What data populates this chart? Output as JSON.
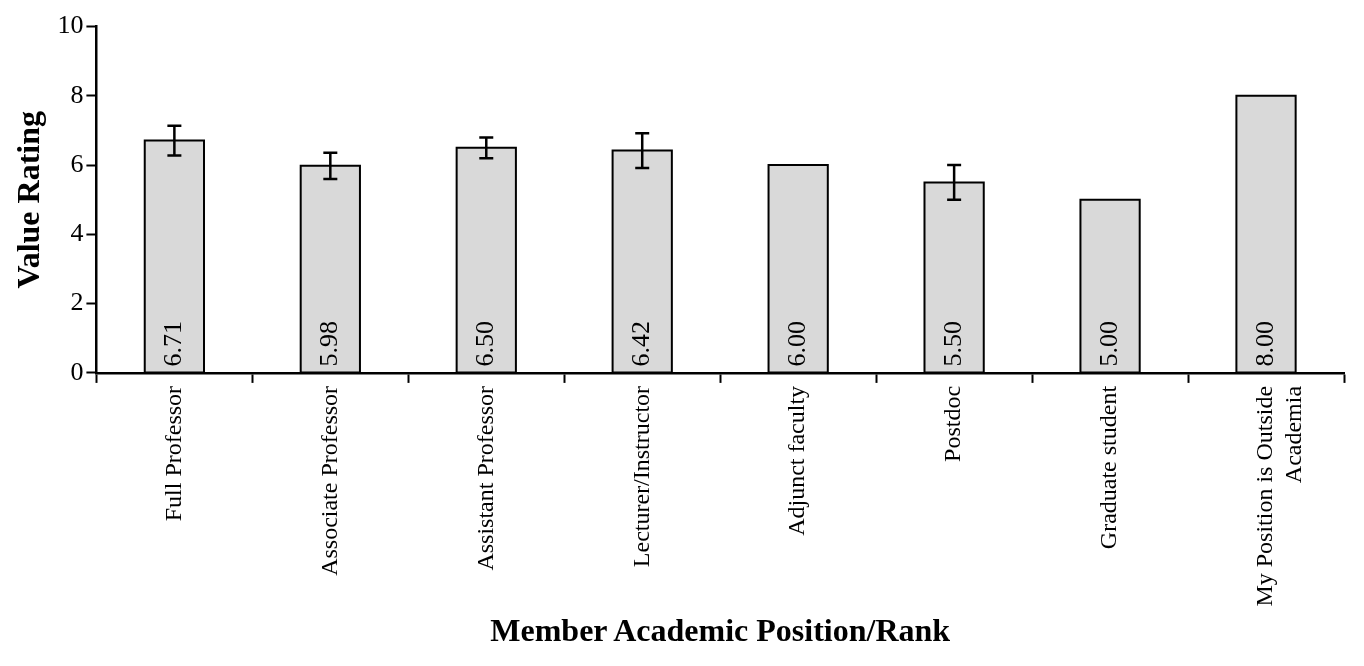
{
  "chart_data": {
    "type": "bar",
    "xlabel": "Member Academic Position/Rank",
    "ylabel": "Value Rating",
    "categories": [
      "Full Professor",
      "Associate Professor",
      "Assistant Professor",
      "Lecturer/Instructor",
      "Adjunct faculty",
      "Postdoc",
      "Graduate student",
      "My Position is Outside Academia"
    ],
    "values": [
      6.71,
      5.98,
      6.5,
      6.42,
      6.0,
      5.5,
      5.0,
      8.0
    ],
    "value_labels": [
      "6.71",
      "5.98",
      "6.50",
      "6.42",
      "6.00",
      "5.50",
      "5.00",
      "8.00"
    ],
    "errors": [
      0.43,
      0.38,
      0.3,
      0.5,
      null,
      0.5,
      null,
      null
    ],
    "color": "#d9d9d9",
    "ylim": [
      0,
      10
    ],
    "yticks": [
      0,
      2,
      4,
      6,
      8,
      10
    ],
    "grid": false,
    "legend": false
  }
}
